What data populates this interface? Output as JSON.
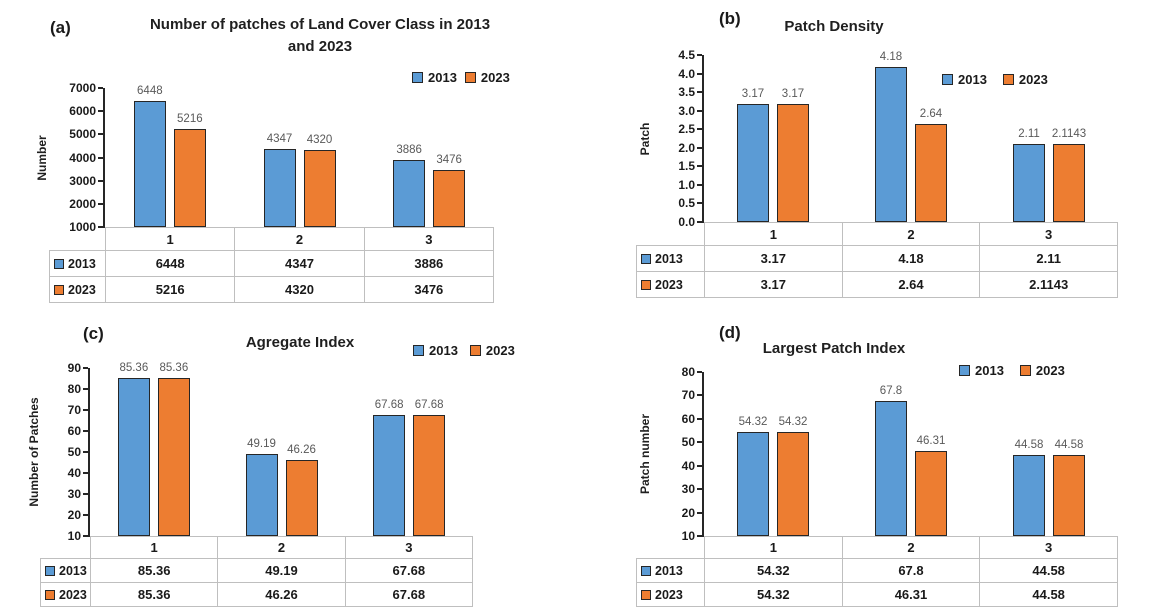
{
  "page": {
    "background": "#ffffff"
  },
  "colors": {
    "series_2013": "#5B9BD5",
    "series_2023": "#ED7D31",
    "bar_border": "#262626",
    "data_label": "#595959",
    "table_border": "#BFBFBF",
    "text": "#1A1A1A"
  },
  "chart_data": [
    {
      "type": "bar",
      "panel_label": "(a)",
      "title_lines": [
        "Number of patches of  Land Cover Class in 2013",
        "and 2023"
      ],
      "ylabel": "Number",
      "ylim": [
        1000,
        7000
      ],
      "ytick_step": 1000,
      "ytick_decimals": 0,
      "grid": false,
      "legend_position": "top-right",
      "categories": [
        "1",
        "2",
        "3"
      ],
      "series": [
        {
          "name": "2013",
          "color": "#5B9BD5",
          "values": [
            6448,
            4347,
            3886
          ],
          "labels": [
            "6448",
            "4347",
            "3886"
          ]
        },
        {
          "name": "2023",
          "color": "#ED7D31",
          "values": [
            5216,
            4320,
            3476
          ],
          "labels": [
            "5216",
            "4320",
            "3476"
          ]
        }
      ]
    },
    {
      "type": "bar",
      "panel_label": "(b)",
      "title_lines": [
        "Patch Density"
      ],
      "ylabel": "Patch",
      "ylim": [
        0,
        4.5
      ],
      "ytick_step": 0.5,
      "ytick_decimals": 1,
      "grid": false,
      "legend_position": "right",
      "categories": [
        "1",
        "2",
        "3"
      ],
      "series": [
        {
          "name": "2013",
          "color": "#5B9BD5",
          "values": [
            3.17,
            4.18,
            2.11
          ],
          "labels": [
            "3.17",
            "4.18",
            "2.11"
          ]
        },
        {
          "name": "2023",
          "color": "#ED7D31",
          "values": [
            3.17,
            2.64,
            2.1143
          ],
          "labels": [
            "3.17",
            "2.64",
            "2.1143"
          ]
        }
      ]
    },
    {
      "type": "bar",
      "panel_label": "(c)",
      "title_lines": [
        "Agregate Index"
      ],
      "ylabel": "Number of Patches",
      "ylim": [
        10,
        90
      ],
      "ytick_step": 10,
      "ytick_decimals": 0,
      "grid": false,
      "legend_position": "top-right",
      "categories": [
        "1",
        "2",
        "3"
      ],
      "series": [
        {
          "name": "2013",
          "color": "#5B9BD5",
          "values": [
            85.36,
            49.19,
            67.68
          ],
          "labels": [
            "85.36",
            "49.19",
            "67.68"
          ]
        },
        {
          "name": "2023",
          "color": "#ED7D31",
          "values": [
            85.36,
            46.26,
            67.68
          ],
          "labels": [
            "85.36",
            "46.26",
            "67.68"
          ]
        }
      ]
    },
    {
      "type": "bar",
      "panel_label": "(d)",
      "title_lines": [
        "Largest Patch Index"
      ],
      "ylabel": "Patch number",
      "ylim": [
        10,
        80
      ],
      "ytick_step": 10,
      "ytick_decimals": 0,
      "grid": false,
      "legend_position": "top-right",
      "categories": [
        "1",
        "2",
        "3"
      ],
      "series": [
        {
          "name": "2013",
          "color": "#5B9BD5",
          "values": [
            54.32,
            67.8,
            44.58
          ],
          "labels": [
            "54.32",
            "67.8",
            "44.58"
          ]
        },
        {
          "name": "2023",
          "color": "#ED7D31",
          "values": [
            54.32,
            46.31,
            44.58
          ],
          "labels": [
            "54.32",
            "46.31",
            "44.58"
          ]
        }
      ]
    }
  ]
}
